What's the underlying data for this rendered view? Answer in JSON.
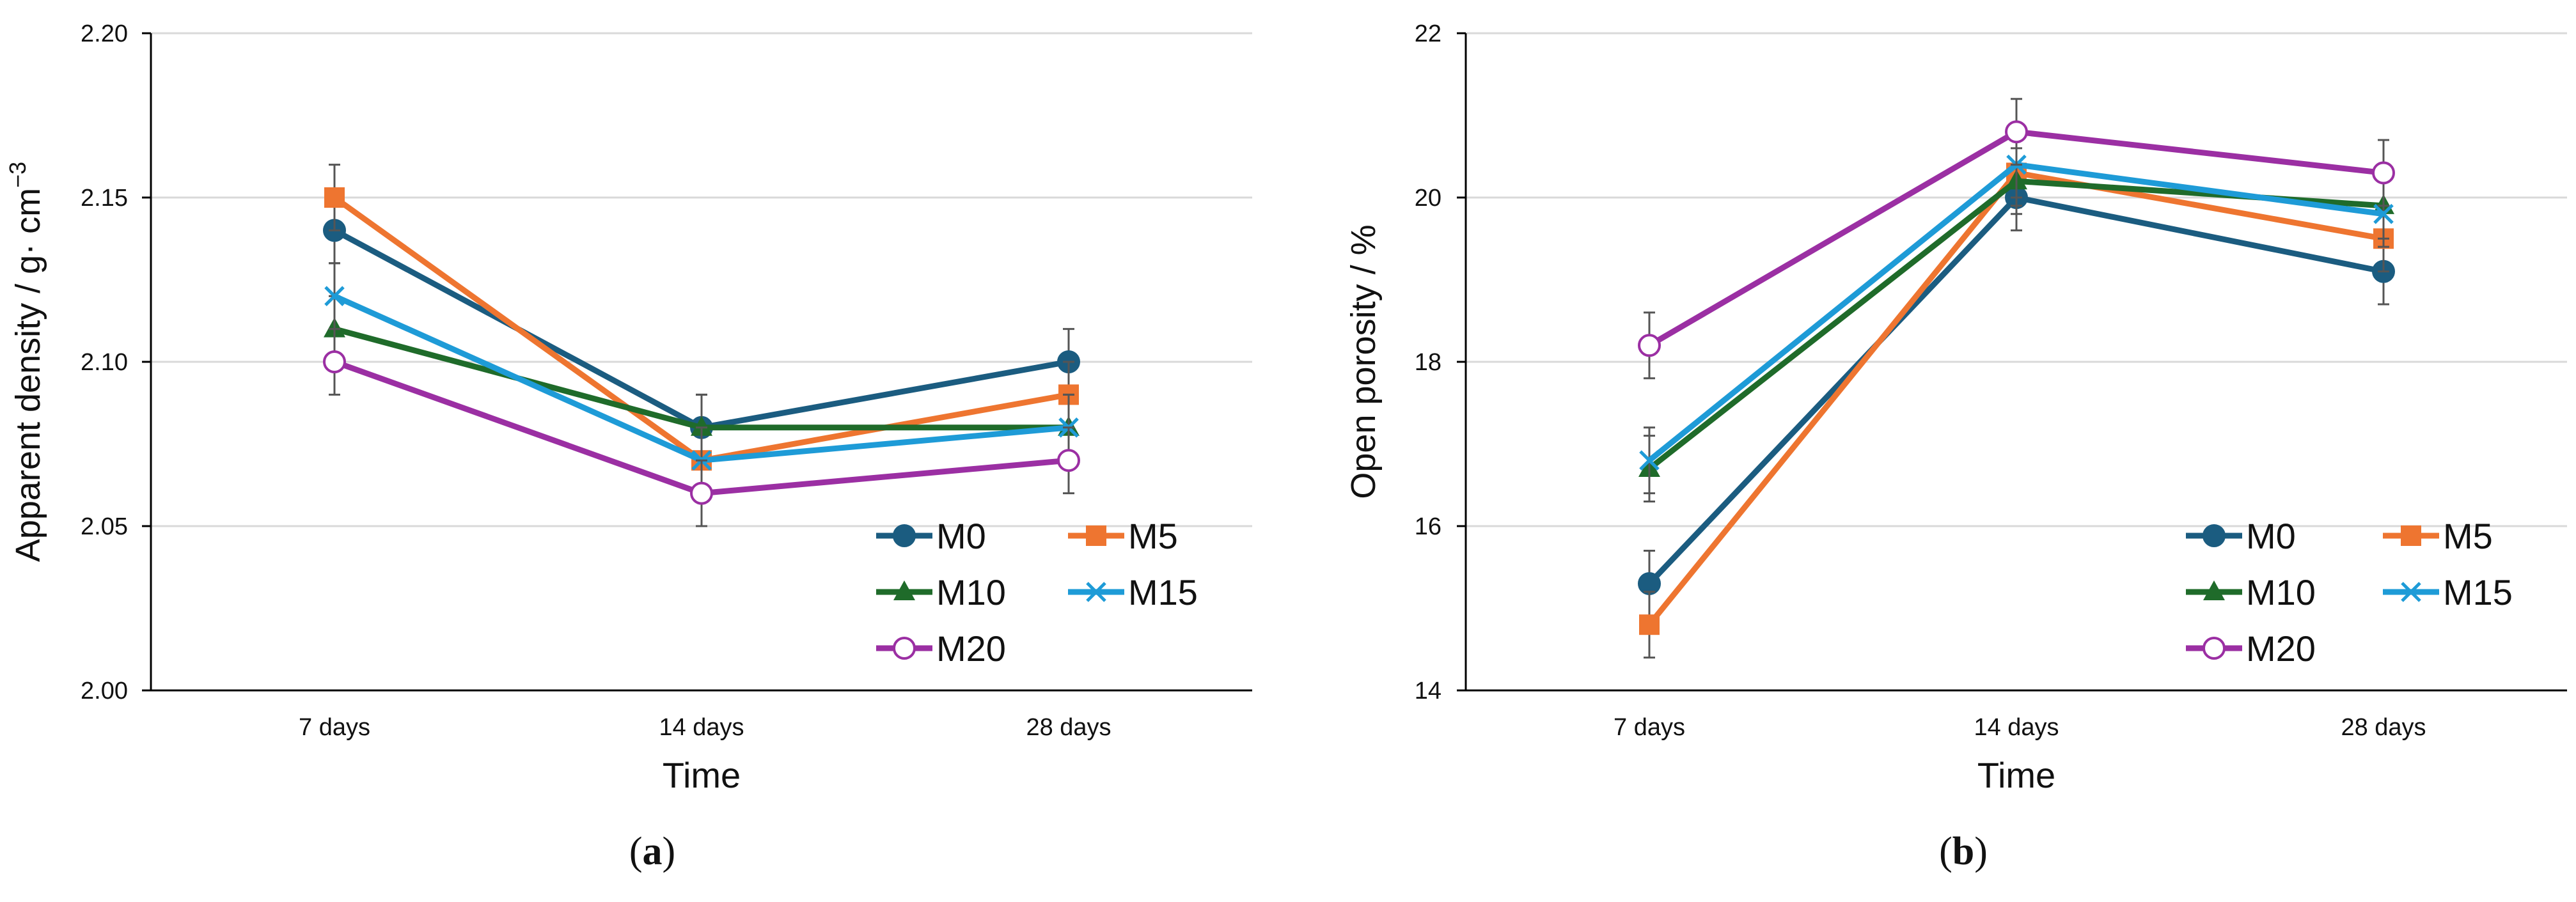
{
  "colors": {
    "M0": "#1B5C80",
    "M5": "#EE7530",
    "M10": "#1F6B2A",
    "M15": "#1E9BD7",
    "M20": "#9B2FA3",
    "grid": "#D9D9D9",
    "axis": "#000000",
    "error": "#555555"
  },
  "markers": {
    "M0": "circle-filled",
    "M5": "square-filled",
    "M10": "triangle-filled",
    "M15": "x-mark",
    "M20": "circle-open"
  },
  "chart_data": [
    {
      "type": "line",
      "caption_letter": "a",
      "title": "",
      "xlabel": "Time",
      "ylabel": "Apparent density / g· cm",
      "ylabel_sup": "−3",
      "categories": [
        "7 days",
        "14 days",
        "28 days"
      ],
      "ylim": [
        2.0,
        2.2
      ],
      "yticks": [
        "2.00",
        "2.05",
        "2.10",
        "2.15",
        "2.20"
      ],
      "ytick_values": [
        2.0,
        2.05,
        2.1,
        2.15,
        2.2
      ],
      "grid": true,
      "legend_position": "bottom-right",
      "series": [
        {
          "name": "M0",
          "values": [
            2.14,
            2.08,
            2.1
          ],
          "errors": [
            0.01,
            0.01,
            0.01
          ]
        },
        {
          "name": "M5",
          "values": [
            2.15,
            2.07,
            2.09
          ],
          "errors": [
            0.01,
            0.01,
            0.01
          ]
        },
        {
          "name": "M10",
          "values": [
            2.11,
            2.08,
            2.08
          ],
          "errors": [
            0.01,
            0.01,
            0.01
          ]
        },
        {
          "name": "M15",
          "values": [
            2.12,
            2.07,
            2.08
          ],
          "errors": [
            0.01,
            0.01,
            0.01
          ]
        },
        {
          "name": "M20",
          "values": [
            2.1,
            2.06,
            2.07
          ],
          "errors": [
            0.01,
            0.01,
            0.01
          ]
        }
      ]
    },
    {
      "type": "line",
      "caption_letter": "b",
      "title": "",
      "xlabel": "Time",
      "ylabel": "Open porosity / %",
      "ylabel_sup": "",
      "categories": [
        "7 days",
        "14 days",
        "28 days"
      ],
      "ylim": [
        14,
        22
      ],
      "yticks": [
        "14",
        "16",
        "18",
        "20",
        "22"
      ],
      "ytick_values": [
        14,
        16,
        18,
        20,
        22
      ],
      "grid": true,
      "legend_position": "bottom-right",
      "series": [
        {
          "name": "M0",
          "values": [
            15.3,
            20.0,
            19.1
          ],
          "errors": [
            0.4,
            0.4,
            0.4
          ]
        },
        {
          "name": "M5",
          "values": [
            14.8,
            20.3,
            19.5
          ],
          "errors": [
            0.4,
            0.4,
            0.4
          ]
        },
        {
          "name": "M10",
          "values": [
            16.7,
            20.2,
            19.9
          ],
          "errors": [
            0.4,
            0.4,
            0.4
          ]
        },
        {
          "name": "M15",
          "values": [
            16.8,
            20.4,
            19.8
          ],
          "errors": [
            0.4,
            0.4,
            0.4
          ]
        },
        {
          "name": "M20",
          "values": [
            18.2,
            20.8,
            20.3
          ],
          "errors": [
            0.4,
            0.4,
            0.4
          ]
        }
      ]
    }
  ]
}
